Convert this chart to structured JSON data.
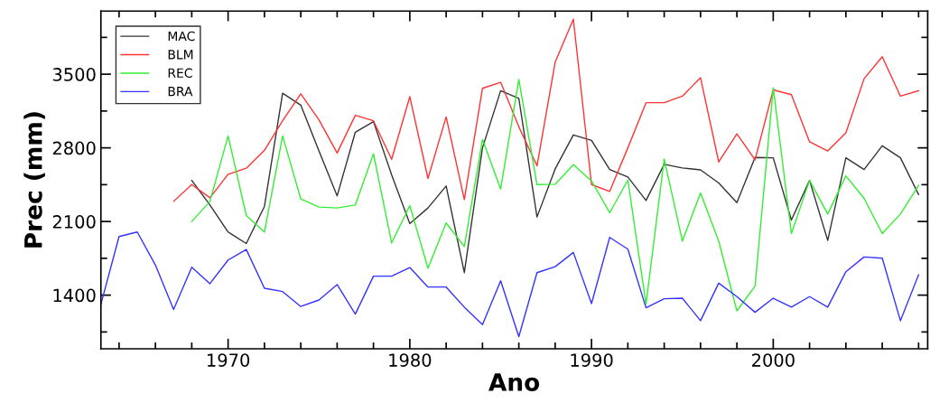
{
  "chart_data": {
    "type": "line",
    "xlabel": "Ano",
    "ylabel": "Prec (mm)",
    "xlim": [
      1963,
      2008.5
    ],
    "ylim": [
      890,
      4100
    ],
    "xticks": [
      {
        "value": 1964,
        "label": null
      },
      {
        "value": 1966,
        "label": null
      },
      {
        "value": 1968,
        "label": null
      },
      1970,
      {
        "value": 1972,
        "label": null
      },
      {
        "value": 1974,
        "label": null
      },
      {
        "value": 1976,
        "label": null
      },
      {
        "value": 1978,
        "label": null
      },
      1980,
      {
        "value": 1982,
        "label": null
      },
      {
        "value": 1984,
        "label": null
      },
      {
        "value": 1986,
        "label": null
      },
      {
        "value": 1988,
        "label": null
      },
      1990,
      {
        "value": 1992,
        "label": null
      },
      {
        "value": 1994,
        "label": null
      },
      {
        "value": 1996,
        "label": null
      },
      {
        "value": 1998,
        "label": null
      },
      2000,
      {
        "value": 2002,
        "label": null
      },
      {
        "value": 2004,
        "label": null
      },
      {
        "value": 2006,
        "label": null
      },
      {
        "value": 2008,
        "label": null
      }
    ],
    "yticks": [
      {
        "value": 1050,
        "label": null
      },
      1400,
      {
        "value": 1750,
        "label": null
      },
      2100,
      {
        "value": 2450,
        "label": null
      },
      2800,
      {
        "value": 3150,
        "label": null
      },
      3500,
      {
        "value": 3850,
        "label": null
      }
    ],
    "legend": "top left",
    "grid": false,
    "series": [
      {
        "name": "MAC",
        "color": "#333333",
        "x": [
          1968,
          1969,
          1970,
          1971,
          1972,
          1973,
          1974,
          1975,
          1976,
          1977,
          1978,
          1979,
          1980,
          1981,
          1982,
          1983,
          1984,
          1985,
          1986,
          1987,
          1988,
          1989,
          1990,
          1991,
          1992,
          1993,
          1994,
          1995,
          1996,
          1997,
          1998,
          1999,
          2000,
          2001,
          2002,
          2003,
          2004,
          2005,
          2006,
          2007,
          2008
        ],
        "values": [
          2491,
          2257,
          2000,
          1891,
          2243,
          3320,
          3206,
          2771,
          2343,
          2949,
          3049,
          2543,
          2080,
          2229,
          2437,
          1614,
          2800,
          3343,
          3271,
          2143,
          2600,
          2923,
          2871,
          2594,
          2523,
          2300,
          2643,
          2609,
          2591,
          2466,
          2280,
          2709,
          2706,
          2114,
          2491,
          1920,
          2706,
          2594,
          2820,
          2706,
          2357
        ]
      },
      {
        "name": "BLM",
        "color": "#ff3333",
        "x": [
          1967,
          1968,
          1969,
          1970,
          1971,
          1972,
          1973,
          1974,
          1975,
          1976,
          1977,
          1978,
          1979,
          1980,
          1981,
          1982,
          1983,
          1984,
          1985,
          1986,
          1987,
          1988,
          1989,
          1990,
          1991,
          1992,
          1993,
          1994,
          1995,
          1996,
          1997,
          1998,
          1999,
          2000,
          2001,
          2002,
          2003,
          2004,
          2005,
          2006,
          2007,
          2008
        ],
        "values": [
          2291,
          2451,
          2326,
          2549,
          2606,
          2777,
          3057,
          3314,
          3066,
          2751,
          3109,
          3057,
          2691,
          3286,
          2509,
          3094,
          2309,
          3366,
          3423,
          3000,
          2629,
          3614,
          4023,
          2451,
          2386,
          2800,
          3229,
          3229,
          3291,
          3466,
          2666,
          2934,
          2686,
          3351,
          3306,
          2857,
          2771,
          2943,
          3457,
          3666,
          3291,
          3343
        ]
      },
      {
        "name": "REC",
        "color": "#33ee33",
        "x": [
          1968,
          1969,
          1970,
          1971,
          1972,
          1973,
          1974,
          1975,
          1976,
          1977,
          1978,
          1979,
          1980,
          1981,
          1982,
          1983,
          1984,
          1985,
          1986,
          1987,
          1988,
          1989,
          1990,
          1991,
          1992,
          1993,
          1994,
          1995,
          1996,
          1997,
          1998,
          1999,
          2000,
          2001,
          2002,
          2003,
          2004,
          2005,
          2006,
          2007,
          2008
        ],
        "values": [
          2100,
          2291,
          2914,
          2157,
          2000,
          2914,
          2314,
          2237,
          2229,
          2257,
          2743,
          1897,
          2251,
          1657,
          2086,
          1863,
          2880,
          2409,
          3451,
          2451,
          2454,
          2640,
          2486,
          2183,
          2494,
          1314,
          2694,
          1914,
          2371,
          1914,
          1251,
          1486,
          3371,
          1986,
          2491,
          2171,
          2534,
          2320,
          1986,
          2171,
          2443
        ]
      },
      {
        "name": "BRA",
        "color": "#3333ff",
        "x": [
          1963,
          1964,
          1965,
          1966,
          1967,
          1968,
          1969,
          1970,
          1971,
          1972,
          1973,
          1974,
          1975,
          1976,
          1977,
          1978,
          1979,
          1980,
          1981,
          1982,
          1983,
          1984,
          1985,
          1986,
          1987,
          1988,
          1989,
          1990,
          1991,
          1992,
          1993,
          1994,
          1995,
          1996,
          1997,
          1998,
          1999,
          2000,
          2001,
          2002,
          2003,
          2004,
          2005,
          2006,
          2007,
          2008
        ],
        "values": [
          1314,
          1957,
          2000,
          1686,
          1263,
          1666,
          1509,
          1734,
          1834,
          1466,
          1434,
          1292,
          1354,
          1500,
          1220,
          1580,
          1580,
          1663,
          1477,
          1477,
          1286,
          1120,
          1537,
          1006,
          1614,
          1671,
          1806,
          1320,
          1949,
          1837,
          1280,
          1366,
          1371,
          1157,
          1514,
          1386,
          1237,
          1371,
          1286,
          1386,
          1286,
          1623,
          1763,
          1751,
          1157,
          1594
        ]
      }
    ]
  }
}
